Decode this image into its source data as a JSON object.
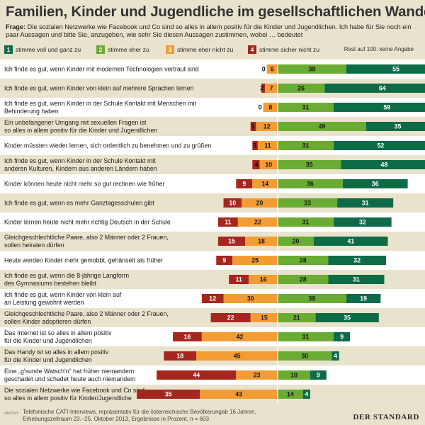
{
  "header": {
    "title": "Familien, Kinder und Jugendliche im gesellschaftlichen Wandel",
    "question_label": "Frage:",
    "question_text": "Die sozialen Netzwerke wie Facebook und Co sind so alles in allem positiv für die Kinder und Jugendlichen. Ich habe für Sie noch ein paar Aussagen und bitte Sie, anzugeben, wie sehr Sie diesen Aussagen zustimmen, wobei … bedeutet"
  },
  "legend": {
    "items": [
      {
        "num": "1",
        "label": "stimme voll und ganz zu",
        "color": "#0e6b47"
      },
      {
        "num": "2",
        "label": "stimme eher zu",
        "color": "#6aab33"
      },
      {
        "num": "3",
        "label": "stimme eher nicht zu",
        "color": "#f39c34"
      },
      {
        "num": "4",
        "label": "stimme sicher nicht zu",
        "color": "#a4261f"
      }
    ],
    "rest_note": "Rest auf 100:  keine Angabe"
  },
  "colors": {
    "voll": "#0e6b47",
    "eher": "#6aab33",
    "eher_nicht": "#f39c34",
    "sicher_nicht": "#a4261f",
    "row_odd": "#ffffff",
    "row_even": "#e9e3cd"
  },
  "chart_data": {
    "type": "bar",
    "subtype": "diverging-stacked-horizontal",
    "unit": "Prozent",
    "series_names": [
      "stimme voll und ganz zu",
      "stimme eher zu",
      "stimme eher nicht zu",
      "stimme sicher nicht zu"
    ],
    "rows": [
      {
        "label": [
          "Ich finde es gut, wenn Kinder mit modernen Technologien vertraut sind"
        ],
        "voll": 55,
        "eher": 38,
        "eher_nicht": 6,
        "sicher_nicht": 0
      },
      {
        "label": [
          "Ich finde es gut, wenn Kinder von klein auf mehrere Sprachen lernen"
        ],
        "voll": 64,
        "eher": 26,
        "eher_nicht": 7,
        "sicher_nicht": 2
      },
      {
        "label": [
          "Ich finde es gut, wenn Kinder in der Schule Kontakt mit Menschen mit",
          "Behinderung haben"
        ],
        "voll": 59,
        "eher": 31,
        "eher_nicht": 8,
        "sicher_nicht": 0
      },
      {
        "label": [
          "Ein unbefangener Umgang mit sexuellen Fragen ist",
          "so alles in allem positiv für die Kinder und Jugendlichen"
        ],
        "voll": 35,
        "eher": 49,
        "eher_nicht": 12,
        "sicher_nicht": 3
      },
      {
        "label": [
          "Kinder müssten wieder lernen, sich ordentlich zu benehmen und zu grüßen"
        ],
        "voll": 52,
        "eher": 31,
        "eher_nicht": 11,
        "sicher_nicht": 3
      },
      {
        "label": [
          "Ich finde es gut, wenn Kinder in der Schule Kontakt mit",
          "anderen Kulturen, Kindern aus anderen Ländern haben"
        ],
        "voll": 48,
        "eher": 35,
        "eher_nicht": 10,
        "sicher_nicht": 4
      },
      {
        "label": [
          "Kinder können heute nicht mehr so gut rechnen wie früher"
        ],
        "voll": 36,
        "eher": 36,
        "eher_nicht": 14,
        "sicher_nicht": 9
      },
      {
        "label": [
          "Ich finde es gut, wenn es mehr Ganztagesschulen gibt"
        ],
        "voll": 31,
        "eher": 33,
        "eher_nicht": 20,
        "sicher_nicht": 10
      },
      {
        "label": [
          "Kinder lernen heute nicht mehr richtig Deutsch in der Schule"
        ],
        "voll": 32,
        "eher": 31,
        "eher_nicht": 22,
        "sicher_nicht": 11
      },
      {
        "label": [
          "Gleichgeschlechtliche Paare, also 2 Männer oder 2 Frauen,",
          "sollen heiraten dürfen"
        ],
        "voll": 41,
        "eher": 20,
        "eher_nicht": 18,
        "sicher_nicht": 15
      },
      {
        "label": [
          "Heute werden Kinder mehr gemobbt, gehänselt als früher"
        ],
        "voll": 32,
        "eher": 28,
        "eher_nicht": 25,
        "sicher_nicht": 9
      },
      {
        "label": [
          "Ich finde es gut, wenn die 8-jährige Langform",
          "des Gymnasiums bestehen bleibt"
        ],
        "voll": 31,
        "eher": 28,
        "eher_nicht": 16,
        "sicher_nicht": 11
      },
      {
        "label": [
          "Ich finde es gut, wenn Kinder von klein auf",
          "an Leistung gewöhnt werden"
        ],
        "voll": 19,
        "eher": 38,
        "eher_nicht": 30,
        "sicher_nicht": 12
      },
      {
        "label": [
          "Gleichgeschlechtliche Paare, also 2 Männer oder 2 Frauen,",
          "sollen Kinder adoptieren dürfen"
        ],
        "voll": 35,
        "eher": 21,
        "eher_nicht": 15,
        "sicher_nicht": 22
      },
      {
        "label": [
          "Das Internet ist so alles in allem positiv",
          "für die Kinder und Jugendlichen"
        ],
        "voll": 9,
        "eher": 31,
        "eher_nicht": 42,
        "sicher_nicht": 16
      },
      {
        "label": [
          "Das Handy ist so alles in allem positiv",
          "für die Kinder und Jugendlichen"
        ],
        "voll": 4,
        "eher": 30,
        "eher_nicht": 45,
        "sicher_nicht": 18
      },
      {
        "label": [
          "Eine „g'sunde Watsch'n\" hat früher niemandem",
          "geschadet und schadet heute auch niemandem"
        ],
        "voll": 9,
        "eher": 18,
        "eher_nicht": 23,
        "sicher_nicht": 44
      },
      {
        "label": [
          "Die sozialen Netzwerke wie Facebook und Co sind",
          "so alles in allem positiv für Kinder/Jugendliche"
        ],
        "voll": 4,
        "eher": 14,
        "eher_nicht": 43,
        "sicher_nicht": 35
      }
    ]
  },
  "footer": {
    "source_line1": "Telefonische CATI-Interviews, repräsentativ für die österreichische Bevölkerungab 16 Jahren,",
    "source_line2": "Erhebungszeitraum 23.–25. Oktober 2013, Ergebnisse in Prozent, n = 603",
    "logo_text": "market",
    "brand": "DER STANDARD"
  }
}
